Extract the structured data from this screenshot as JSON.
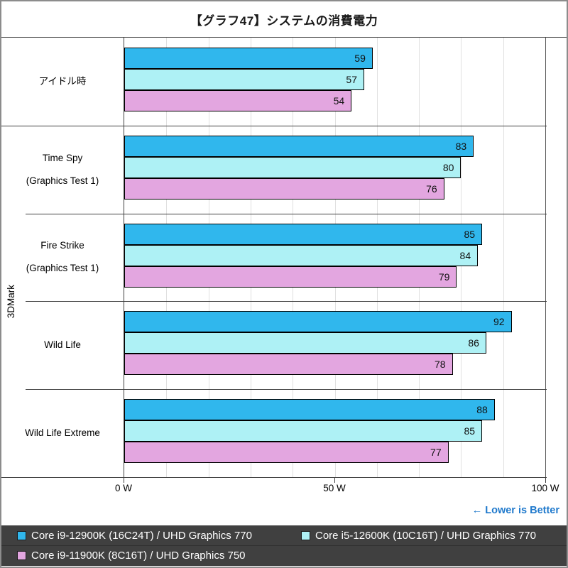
{
  "title": "【グラフ47】システムの消費電力",
  "note": "← Lower is Better",
  "chart_data": {
    "type": "bar",
    "orientation": "horizontal",
    "title": "【グラフ47】システムの消費電力",
    "group_label": "3DMark",
    "categories": [
      {
        "label_lines": [
          "アイドル時"
        ],
        "in_group": false
      },
      {
        "label_lines": [
          "Time Spy",
          "(Graphics Test 1)"
        ],
        "in_group": true
      },
      {
        "label_lines": [
          "Fire Strike",
          "(Graphics Test 1)"
        ],
        "in_group": true
      },
      {
        "label_lines": [
          "Wild Life"
        ],
        "in_group": true
      },
      {
        "label_lines": [
          "Wild Life Extreme"
        ],
        "in_group": true
      }
    ],
    "series": [
      {
        "name": "Core i9-12900K (16C24T) / UHD Graphics 770",
        "color": "#30B7ED",
        "values": [
          59,
          83,
          85,
          92,
          88
        ]
      },
      {
        "name": "Core i5-12600K (10C16T) / UHD Graphics 770",
        "color": "#AEF1F5",
        "values": [
          57,
          80,
          84,
          86,
          85
        ]
      },
      {
        "name": "Core i9-11900K (8C16T) / UHD Graphics 750",
        "color": "#E3A6E0",
        "values": [
          54,
          76,
          79,
          78,
          77
        ]
      }
    ],
    "x_axis": {
      "min": 0,
      "max": 100,
      "unit": "W",
      "ticks": [
        {
          "value": 0,
          "label": "0 W"
        },
        {
          "value": 50,
          "label": "50 W"
        },
        {
          "value": 100,
          "label": "100 W"
        }
      ],
      "minor_gridline_step": 10
    },
    "legend_position": "bottom",
    "lower_is_better": true
  },
  "colors": {
    "series_blue": "#30B7ED",
    "series_cyan": "#AEF1F5",
    "series_pink": "#E3A6E0",
    "bar_border": "#000000",
    "gridline": "#E0E0E0",
    "axis_line": "#3F3F3F",
    "note_blue": "#1F79CC",
    "legend_background": "#404040",
    "legend_text": "#FFFFFF"
  }
}
